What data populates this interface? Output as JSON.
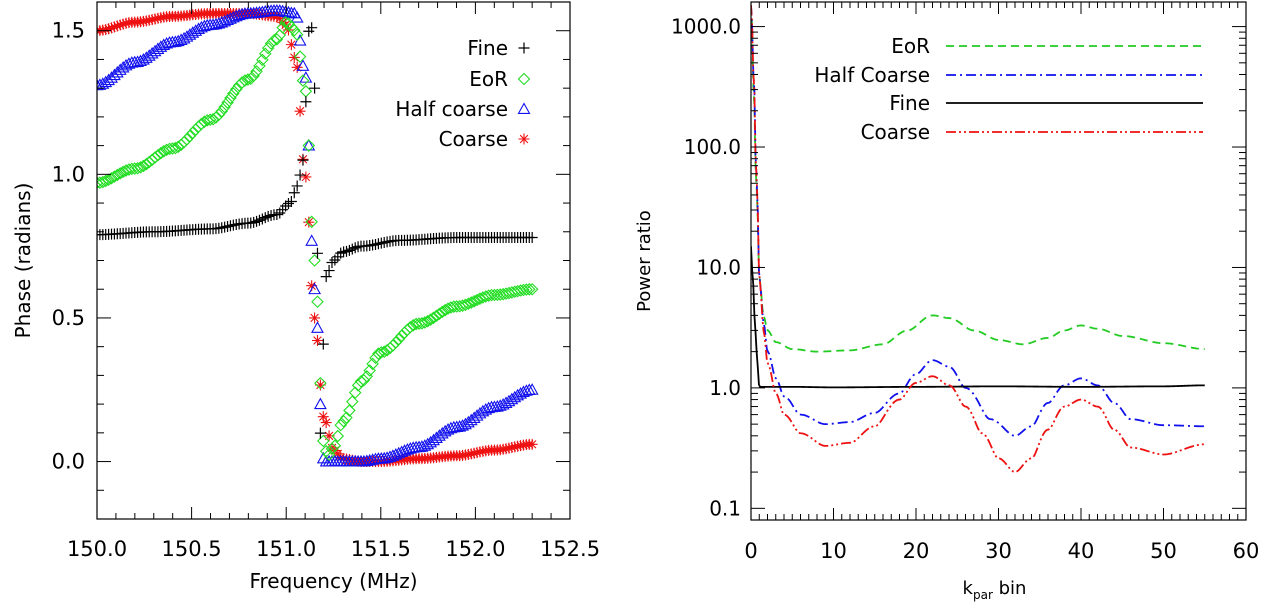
{
  "chart_data": [
    {
      "type": "scatter",
      "title": "",
      "xlabel": "Frequency (MHz)",
      "ylabel": "Phase (radians)",
      "xlim": [
        150.0,
        152.5
      ],
      "ylim": [
        -0.2,
        1.6
      ],
      "x_ticks": [
        "150.0",
        "150.5",
        "151.0",
        "151.5",
        "152.0",
        "152.5"
      ],
      "y_ticks": [
        "0.0",
        "0.5",
        "1.0",
        "1.5"
      ],
      "legend_position": "top-right",
      "legend": [
        {
          "label": "Fine",
          "marker": "+",
          "color": "#000000"
        },
        {
          "label": "EoR",
          "marker": "diamond",
          "color": "#22dd22"
        },
        {
          "label": "Half coarse",
          "marker": "triangle",
          "color": "#1111ee"
        },
        {
          "label": "Coarse",
          "marker": "asterisk",
          "color": "#ee1111"
        }
      ],
      "series": [
        {
          "name": "Fine",
          "color": "#000000",
          "marker": "+",
          "x": [
            150.0,
            150.3,
            150.6,
            150.8,
            150.95,
            151.02,
            151.06,
            151.09,
            151.1,
            151.11,
            151.12,
            151.13,
            151.14,
            151.15,
            151.16,
            151.17,
            151.18,
            151.19,
            151.2,
            151.22,
            151.25,
            151.3,
            151.4,
            151.6,
            151.9,
            152.3
          ],
          "y": [
            0.79,
            0.8,
            0.81,
            0.83,
            0.86,
            0.9,
            0.96,
            1.05,
            1.2,
            1.35,
            1.5,
            1.56,
            1.45,
            1.3,
            1.0,
            0.5,
            0.1,
            0.02,
            0.62,
            0.66,
            0.7,
            0.73,
            0.75,
            0.77,
            0.78,
            0.78
          ]
        },
        {
          "name": "EoR",
          "color": "#22dd22",
          "marker": "diamond",
          "x": [
            150.0,
            150.2,
            150.4,
            150.6,
            150.8,
            150.95,
            151.0,
            151.05,
            151.1,
            151.15,
            151.2,
            151.22,
            151.25,
            151.3,
            151.4,
            151.5,
            151.7,
            151.9,
            152.1,
            152.3
          ],
          "y": [
            0.97,
            1.02,
            1.09,
            1.19,
            1.33,
            1.47,
            1.53,
            1.5,
            1.3,
            0.7,
            0.06,
            0.02,
            0.05,
            0.14,
            0.28,
            0.38,
            0.48,
            0.54,
            0.58,
            0.6
          ]
        },
        {
          "name": "Half coarse",
          "color": "#1111ee",
          "marker": "triangle",
          "x": [
            150.0,
            150.2,
            150.4,
            150.6,
            150.8,
            150.95,
            151.05,
            151.1,
            151.15,
            151.2,
            151.25,
            151.3,
            151.4,
            151.5,
            151.7,
            151.9,
            152.1,
            152.3
          ],
          "y": [
            1.31,
            1.39,
            1.46,
            1.52,
            1.56,
            1.57,
            1.56,
            1.35,
            0.6,
            0.0,
            0.0,
            0.0,
            0.0,
            0.01,
            0.05,
            0.12,
            0.19,
            0.25
          ]
        },
        {
          "name": "Coarse",
          "color": "#ee1111",
          "marker": "asterisk",
          "x": [
            150.0,
            150.2,
            150.4,
            150.6,
            150.8,
            150.95,
            151.0,
            151.05,
            151.1,
            151.15,
            151.2,
            151.25,
            151.3,
            151.4,
            151.5,
            151.7,
            151.9,
            152.1,
            152.3
          ],
          "y": [
            1.5,
            1.53,
            1.55,
            1.56,
            1.56,
            1.55,
            1.52,
            1.4,
            1.0,
            0.5,
            0.15,
            0.04,
            0.01,
            0.0,
            0.0,
            0.01,
            0.02,
            0.04,
            0.06
          ]
        }
      ]
    },
    {
      "type": "line",
      "title": "",
      "xlabel": "k",
      "xlabel_subscript": "par",
      "xlabel_suffix": " bin",
      "ylabel": "Power ratio",
      "y_scale": "log",
      "xlim": [
        0,
        60
      ],
      "ylim": [
        0.08,
        1600
      ],
      "x_ticks": [
        "0",
        "10",
        "20",
        "30",
        "40",
        "50",
        "60"
      ],
      "y_ticks": [
        "0.1",
        "1.0",
        "10.0",
        "100.0",
        "1000.0"
      ],
      "legend_position": "top-right",
      "legend": [
        {
          "label": "EoR",
          "dash": "dashed",
          "color": "#22cc22"
        },
        {
          "label": "Half Coarse",
          "dash": "dash-dot",
          "color": "#1111ee"
        },
        {
          "label": "Fine",
          "dash": "solid",
          "color": "#000000"
        },
        {
          "label": "Coarse",
          "dash": "dash-dot-dot",
          "color": "#ee1111"
        }
      ],
      "series": [
        {
          "name": "EoR",
          "color": "#22cc22",
          "dash": "dashed",
          "x": [
            0,
            0.3,
            0.6,
            1,
            1.5,
            2,
            3,
            5,
            8,
            12,
            16,
            19,
            22,
            24,
            27,
            30,
            33,
            36,
            38,
            40,
            42,
            45,
            50,
            55
          ],
          "y": [
            1500,
            300,
            50,
            8,
            4,
            3,
            2.4,
            2.1,
            2.0,
            2.05,
            2.3,
            3.0,
            4.0,
            3.8,
            3.0,
            2.5,
            2.3,
            2.6,
            3.0,
            3.3,
            3.1,
            2.7,
            2.35,
            2.1
          ]
        },
        {
          "name": "Half Coarse",
          "color": "#1111ee",
          "dash": "dash-dot",
          "x": [
            0,
            0.3,
            0.6,
            1,
            1.5,
            2,
            3,
            4,
            6,
            9,
            12,
            15,
            18,
            20,
            22,
            24,
            26,
            29,
            32,
            34,
            36,
            38,
            40,
            42,
            44,
            46,
            50,
            55
          ],
          "y": [
            1500,
            400,
            60,
            8,
            3.5,
            2.0,
            1.2,
            0.85,
            0.6,
            0.5,
            0.52,
            0.62,
            0.9,
            1.3,
            1.7,
            1.5,
            1.0,
            0.55,
            0.4,
            0.48,
            0.75,
            1.05,
            1.2,
            1.05,
            0.75,
            0.55,
            0.49,
            0.48
          ]
        },
        {
          "name": "Fine",
          "color": "#000000",
          "dash": "solid",
          "x": [
            0,
            0.2,
            0.5,
            0.8,
            1,
            2,
            5,
            10,
            20,
            30,
            40,
            50,
            55
          ],
          "y": [
            15,
            8,
            3,
            1.5,
            1.02,
            1.02,
            1.02,
            1.01,
            1.02,
            1.03,
            1.02,
            1.03,
            1.05
          ]
        },
        {
          "name": "Coarse",
          "color": "#ee1111",
          "dash": "dash-dot-dot",
          "x": [
            0,
            0.3,
            0.6,
            1,
            1.5,
            2,
            3,
            4,
            6,
            9,
            12,
            15,
            18,
            20,
            22,
            24,
            26,
            28,
            30,
            32,
            34,
            36,
            38,
            40,
            42,
            44,
            46,
            50,
            55
          ],
          "y": [
            1500,
            400,
            60,
            8,
            3.0,
            1.6,
            0.9,
            0.6,
            0.42,
            0.33,
            0.35,
            0.48,
            0.8,
            1.1,
            1.25,
            1.05,
            0.7,
            0.42,
            0.26,
            0.2,
            0.26,
            0.45,
            0.7,
            0.8,
            0.7,
            0.45,
            0.32,
            0.28,
            0.34
          ]
        }
      ]
    }
  ]
}
